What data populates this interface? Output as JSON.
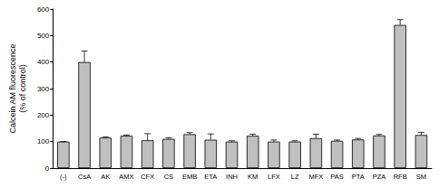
{
  "chart_data": {
    "type": "bar",
    "y_label": "Calcein AM fluorescence\n(% of control)",
    "categories": [
      "(-)",
      "CsA",
      "AK",
      "AMX",
      "CFX",
      "CS",
      "EMB",
      "ETA",
      "INH",
      "KM",
      "LFX",
      "LZ",
      "MFX",
      "PAS",
      "PTA",
      "PZA",
      "RFB",
      "SM"
    ],
    "values": [
      100,
      400,
      115,
      122,
      105,
      110,
      128,
      107,
      100,
      122,
      100,
      100,
      113,
      103,
      108,
      123,
      540,
      125
    ],
    "errors": [
      0,
      42,
      3,
      3,
      25,
      4,
      6,
      22,
      3,
      6,
      6,
      3,
      15,
      3,
      4,
      4,
      20,
      10
    ],
    "color": "#c0c0c0",
    "ylim": [
      0,
      600
    ],
    "yticks": [
      0,
      100,
      200,
      300,
      400,
      500,
      600
    ],
    "grid": false
  }
}
